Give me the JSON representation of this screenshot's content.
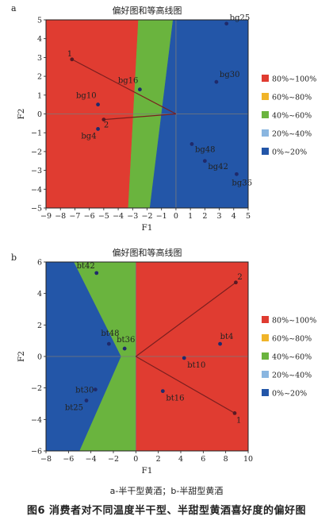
{
  "panel_labels": [
    "a",
    "b"
  ],
  "legend": [
    {
      "label": "80%~100%",
      "color": "#e03c31"
    },
    {
      "label": "60%~80%",
      "color": "#f0b429"
    },
    {
      "label": "40%~60%",
      "color": "#6ab43e"
    },
    {
      "label": "20%~40%",
      "color": "#8ab6e0"
    },
    {
      "label": "0%~20%",
      "color": "#2356a8"
    }
  ],
  "caption": {
    "sub": "a-半干型黄酒；b-半甜型黄酒",
    "label": "图6",
    "text": "消费者对不同温度半干型、半甜型黄酒喜好度的偏好图"
  },
  "chart_data": [
    {
      "type": "scatter",
      "title": "偏好图和等高线图",
      "xlabel": "F1",
      "ylabel": "F2",
      "xlim": [
        -9,
        5
      ],
      "ylim": [
        -5,
        5
      ],
      "xticks": [
        -9,
        -8,
        -7,
        -6,
        -5,
        -4,
        -3,
        -2,
        -1,
        0,
        1,
        2,
        3,
        4,
        5
      ],
      "yticks": [
        -5,
        -4,
        -3,
        -2,
        -1,
        0,
        1,
        2,
        3,
        4,
        5
      ],
      "grid": false,
      "legend_position": "right",
      "regions": [
        {
          "band": "80%~100%",
          "polygon": [
            [
              -9,
              5
            ],
            [
              -2.6,
              5
            ],
            [
              -3.3,
              -5
            ],
            [
              -9,
              -5
            ]
          ]
        },
        {
          "band": "40%~60%",
          "polygon": [
            [
              -2.6,
              5
            ],
            [
              -0.2,
              5
            ],
            [
              -1.8,
              -5
            ],
            [
              -3.3,
              -5
            ]
          ]
        },
        {
          "band": "0%~20%",
          "polygon": [
            [
              -0.2,
              5
            ],
            [
              5,
              5
            ],
            [
              5,
              -5
            ],
            [
              -1.8,
              -5
            ]
          ]
        }
      ],
      "points": [
        {
          "label": "bg25",
          "x": 3.5,
          "y": 4.8
        },
        {
          "label": "bg30",
          "x": 2.8,
          "y": 1.7
        },
        {
          "label": "bg16",
          "x": -2.5,
          "y": 1.3
        },
        {
          "label": "bg10",
          "x": -5.4,
          "y": 0.5
        },
        {
          "label": "bg4",
          "x": -5.4,
          "y": -0.8
        },
        {
          "label": "bg48",
          "x": 1.1,
          "y": -1.6
        },
        {
          "label": "bg42",
          "x": 2.0,
          "y": -2.5
        },
        {
          "label": "bg36",
          "x": 4.2,
          "y": -3.2
        }
      ],
      "consumer_vectors": [
        {
          "label": "1",
          "x": -7.2,
          "y": 2.9
        },
        {
          "label": "2",
          "x": -5.0,
          "y": -0.3
        }
      ]
    },
    {
      "type": "scatter",
      "title": "偏好图和等高线图",
      "xlabel": "F1",
      "ylabel": "F2",
      "xlim": [
        -8,
        10
      ],
      "ylim": [
        -6,
        6
      ],
      "xticks": [
        -8,
        -6,
        -4,
        -2,
        0,
        2,
        4,
        6,
        8,
        10
      ],
      "yticks": [
        -6,
        -4,
        -2,
        0,
        2,
        4,
        6
      ],
      "grid": false,
      "legend_position": "right",
      "regions": [
        {
          "band": "0%~20%",
          "polygon": [
            [
              -8,
              6
            ],
            [
              -5.5,
              6
            ],
            [
              -1.3,
              0
            ],
            [
              -5.0,
              -6
            ],
            [
              -8,
              -6
            ]
          ]
        },
        {
          "band": "40%~60%",
          "polygon": [
            [
              -5.5,
              6
            ],
            [
              0,
              6
            ],
            [
              0,
              -6
            ],
            [
              -5.0,
              -6
            ],
            [
              -1.3,
              0
            ]
          ]
        },
        {
          "band": "80%~100%",
          "polygon": [
            [
              0,
              6
            ],
            [
              10,
              6
            ],
            [
              10,
              -6
            ],
            [
              0,
              -6
            ]
          ]
        }
      ],
      "points": [
        {
          "label": "bt42",
          "x": -3.5,
          "y": 5.3
        },
        {
          "label": "bt48",
          "x": -2.4,
          "y": 0.8
        },
        {
          "label": "bt36",
          "x": -1.0,
          "y": 0.5
        },
        {
          "label": "bt4",
          "x": 7.5,
          "y": 0.8
        },
        {
          "label": "bt10",
          "x": 4.3,
          "y": -0.1
        },
        {
          "label": "bt16",
          "x": 2.4,
          "y": -2.2
        },
        {
          "label": "bt30",
          "x": -3.6,
          "y": -2.1
        },
        {
          "label": "bt25",
          "x": -4.4,
          "y": -2.8
        }
      ],
      "consumer_vectors": [
        {
          "label": "2",
          "x": 8.9,
          "y": 4.7
        },
        {
          "label": "1",
          "x": 8.8,
          "y": -3.6
        }
      ]
    }
  ]
}
